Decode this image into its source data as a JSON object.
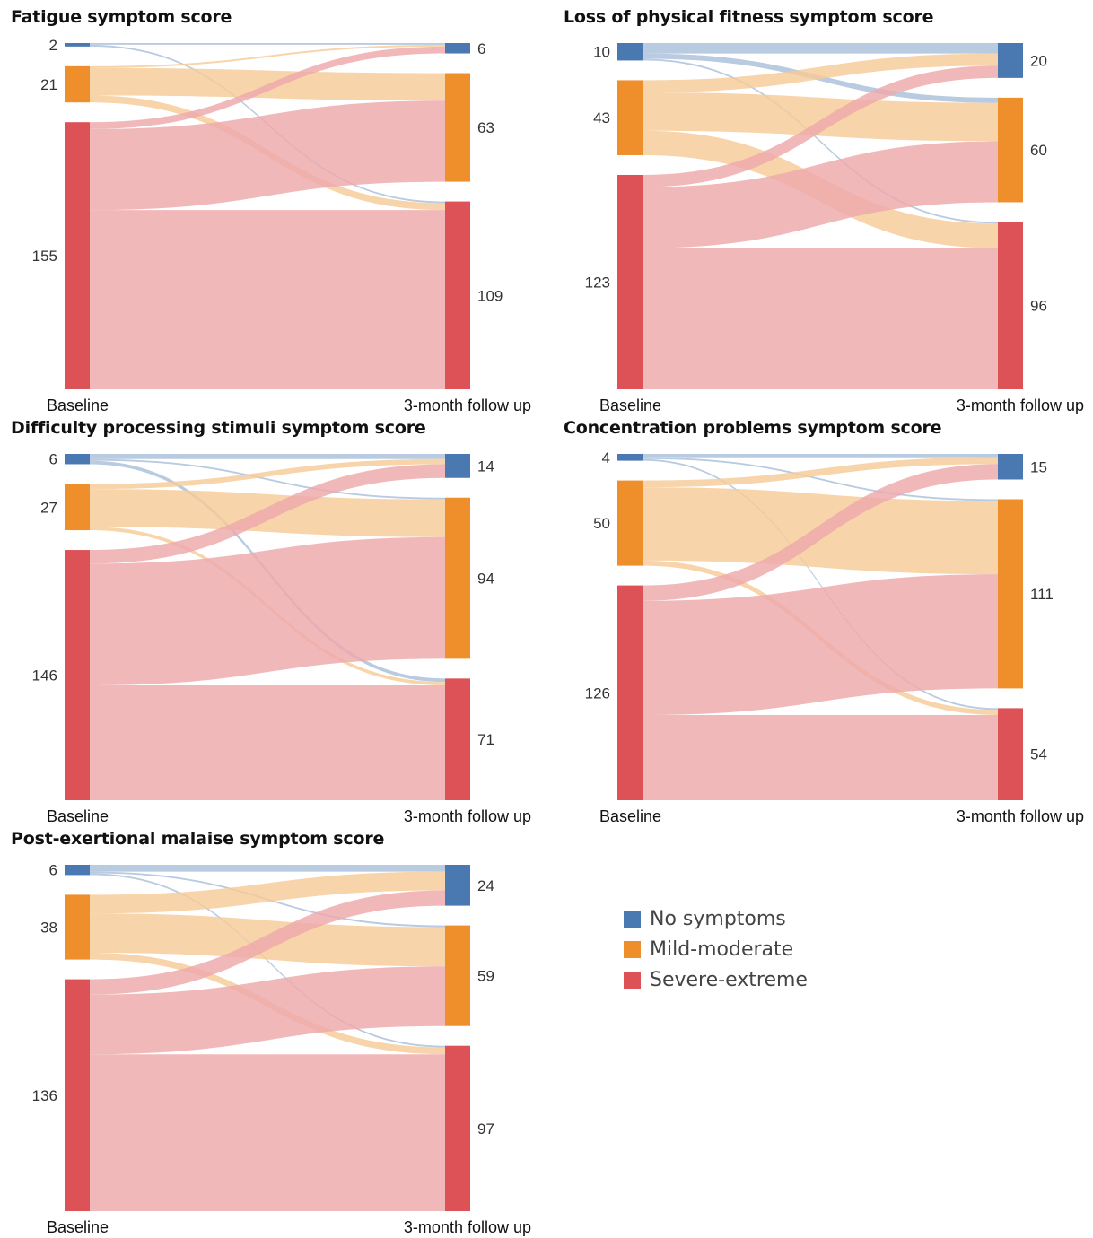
{
  "colors": {
    "no_symptoms": "#4a78b0",
    "mild_moderate": "#ee8f2c",
    "severe_extreme": "#dd5257",
    "link_no_symptoms": "#a9bfd9",
    "link_mild_moderate": "#f6cb97",
    "link_severe_extreme": "#eea8ab"
  },
  "axis_labels": {
    "left": "Baseline",
    "right": "3-month follow up"
  },
  "legend": [
    {
      "label": "No symptoms",
      "color": "#4a78b0"
    },
    {
      "label": "Mild-moderate",
      "color": "#ee8f2c"
    },
    {
      "label": "Severe-extreme",
      "color": "#dd5257"
    }
  ],
  "chart_data": [
    {
      "type": "sankey",
      "title": "Fatigue symptom score",
      "categories": [
        "No symptoms",
        "Mild-moderate",
        "Severe-extreme"
      ],
      "baseline": [
        2,
        21,
        155
      ],
      "followup": [
        6,
        63,
        109
      ],
      "flows": [
        [
          1,
          0,
          1
        ],
        [
          1,
          16,
          4
        ],
        [
          4,
          47,
          104
        ]
      ]
    },
    {
      "type": "sankey",
      "title": "Loss of physical fitness symptom score",
      "categories": [
        "No symptoms",
        "Mild-moderate",
        "Severe-extreme"
      ],
      "baseline": [
        10,
        43,
        123
      ],
      "followup": [
        20,
        60,
        96
      ],
      "flows": [
        [
          6,
          3,
          1
        ],
        [
          7,
          22,
          14
        ],
        [
          7,
          35,
          81
        ]
      ]
    },
    {
      "type": "sankey",
      "title": "Difficulty processing stimuli symptom score",
      "categories": [
        "No symptoms",
        "Mild-moderate",
        "Severe-extreme"
      ],
      "baseline": [
        6,
        27,
        146
      ],
      "followup": [
        14,
        94,
        71
      ],
      "flows": [
        [
          3,
          1,
          2
        ],
        [
          3,
          22,
          2
        ],
        [
          8,
          71,
          67
        ]
      ]
    },
    {
      "type": "sankey",
      "title": "Concentration problems symptom score",
      "categories": [
        "No symptoms",
        "Mild-moderate",
        "Severe-extreme"
      ],
      "baseline": [
        4,
        50,
        126
      ],
      "followup": [
        15,
        111,
        54
      ],
      "flows": [
        [
          2,
          1,
          1
        ],
        [
          4,
          43,
          3
        ],
        [
          9,
          67,
          50
        ]
      ]
    },
    {
      "type": "sankey",
      "title": "Post-exertional malaise symptom score",
      "categories": [
        "No symptoms",
        "Mild-moderate",
        "Severe-extreme"
      ],
      "baseline": [
        6,
        38,
        136
      ],
      "followup": [
        24,
        59,
        97
      ],
      "flows": [
        [
          4,
          1,
          1
        ],
        [
          11,
          23,
          4
        ],
        [
          9,
          35,
          92
        ]
      ]
    }
  ]
}
